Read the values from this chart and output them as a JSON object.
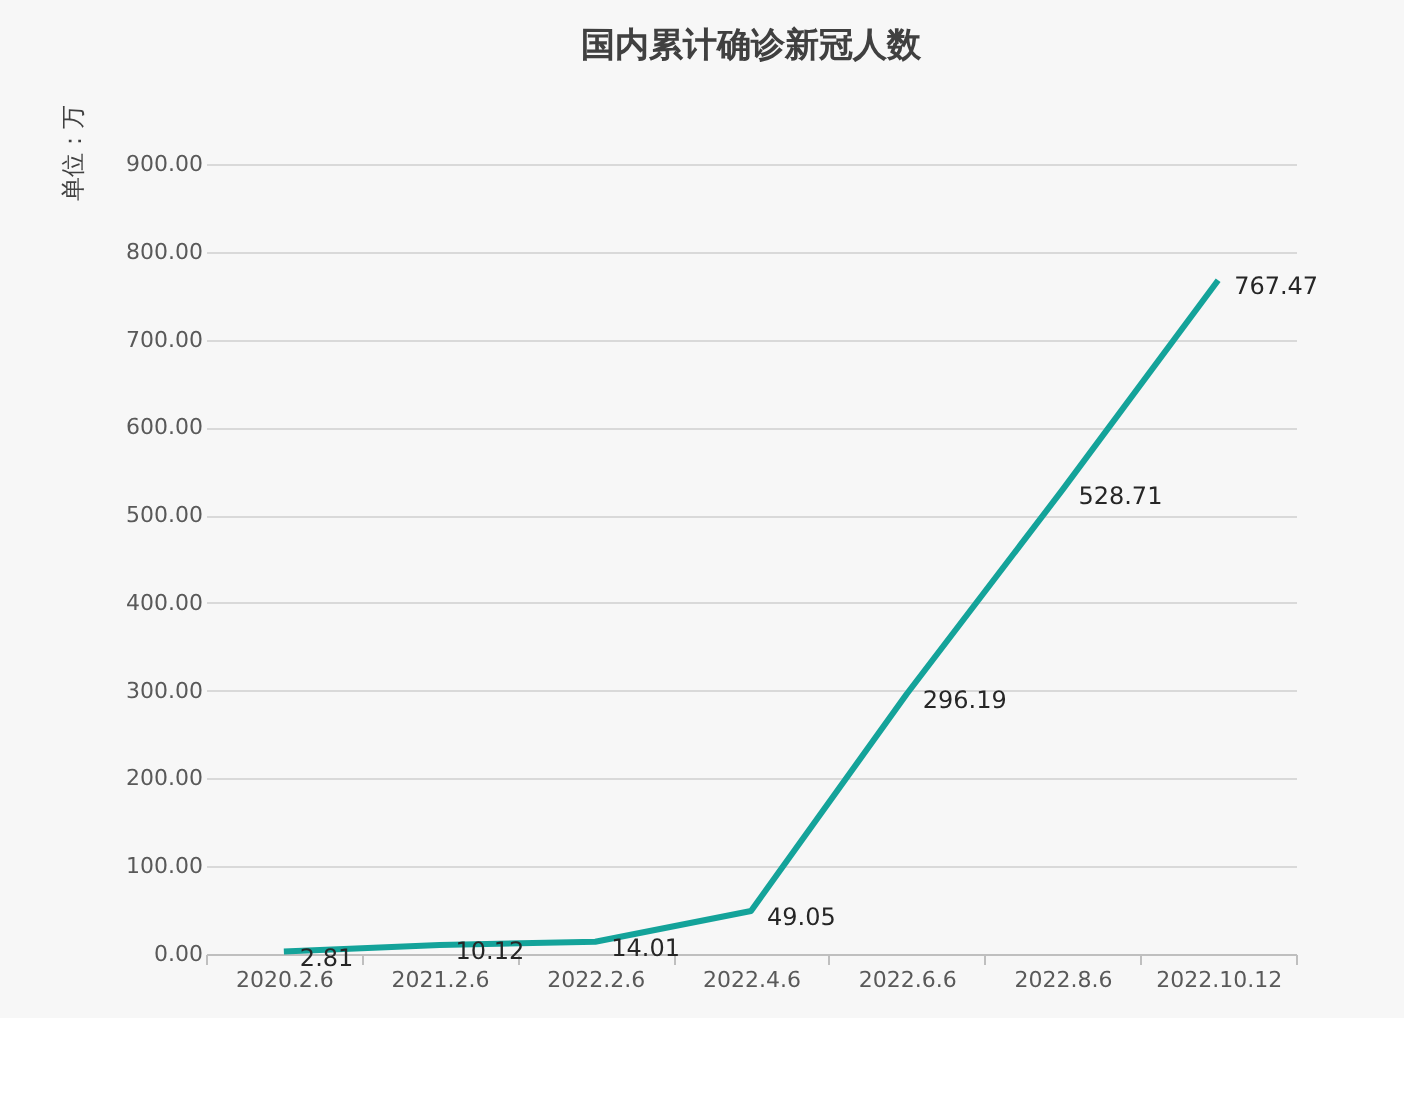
{
  "chart_data": {
    "type": "line",
    "title": "国内累计确诊新冠人数",
    "ylabel": "单位：万",
    "categories": [
      "2020.2.6",
      "2021.2.6",
      "2022.2.6",
      "2022.4.6",
      "2022.6.6",
      "2022.8.6",
      "2022.10.12"
    ],
    "series": [
      {
        "color": "#14a39a",
        "values": [
          2.81,
          10.12,
          14.01,
          49.05,
          296.19,
          528.71,
          767.47
        ]
      }
    ],
    "ylim": [
      0,
      900
    ],
    "yticks": [
      {
        "value": 0,
        "label": "0.00"
      },
      {
        "value": 100,
        "label": "100.00"
      },
      {
        "value": 200,
        "label": "200.00"
      },
      {
        "value": 300,
        "label": "300.00"
      },
      {
        "value": 400,
        "label": "400.00"
      },
      {
        "value": 500,
        "label": "500.00"
      },
      {
        "value": 600,
        "label": "600.00"
      },
      {
        "value": 700,
        "label": "700.00"
      },
      {
        "value": 800,
        "label": "800.00"
      },
      {
        "value": 900,
        "label": "900.00"
      }
    ],
    "grid": "y",
    "data_labels": true,
    "legend": false,
    "marker": "none",
    "line_style": "solid"
  }
}
